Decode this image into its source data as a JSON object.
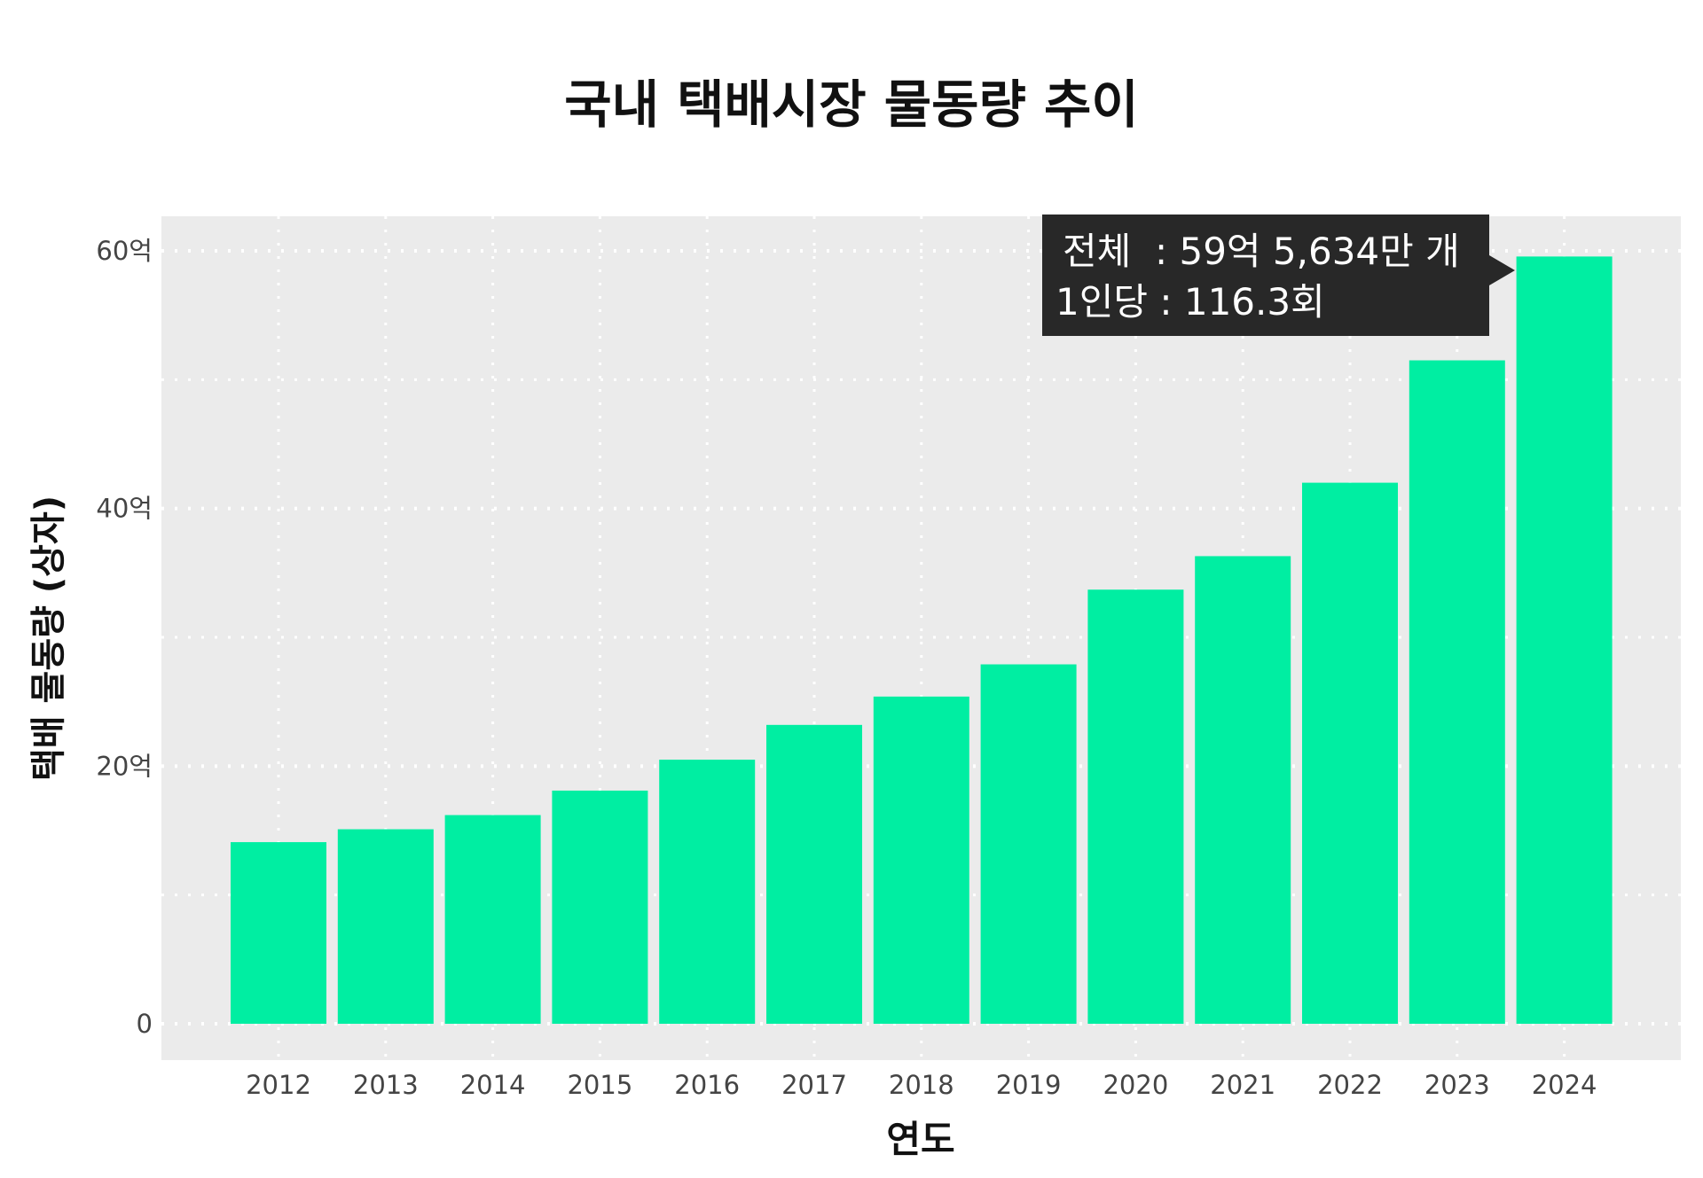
{
  "chart_data": {
    "type": "bar",
    "title": "국내 택배시장 물동량 추이",
    "xlabel": "연도",
    "ylabel": "택배 물동량 (상자)",
    "categories": [
      "2012",
      "2013",
      "2014",
      "2015",
      "2016",
      "2017",
      "2018",
      "2019",
      "2020",
      "2021",
      "2022",
      "2023",
      "2024"
    ],
    "values": [
      14.1,
      15.1,
      16.2,
      18.1,
      20.5,
      23.2,
      25.4,
      27.9,
      33.7,
      36.3,
      42.0,
      51.5,
      59.56
    ],
    "value_unit": "억 상자",
    "ylim": [
      -2.5,
      63
    ],
    "yticks": [
      0,
      20,
      40,
      60
    ],
    "ytick_labels": [
      "0",
      "20억",
      "40억",
      "60억"
    ],
    "grid": true,
    "annotation": {
      "line1": "전체  : 59억 5,634만 개",
      "line2": "1인당 : 116.3회",
      "target": "2024"
    },
    "colors": {
      "bar": "#00EEA2",
      "panel": "#EBEBEB",
      "tooltip": "#282828"
    }
  }
}
